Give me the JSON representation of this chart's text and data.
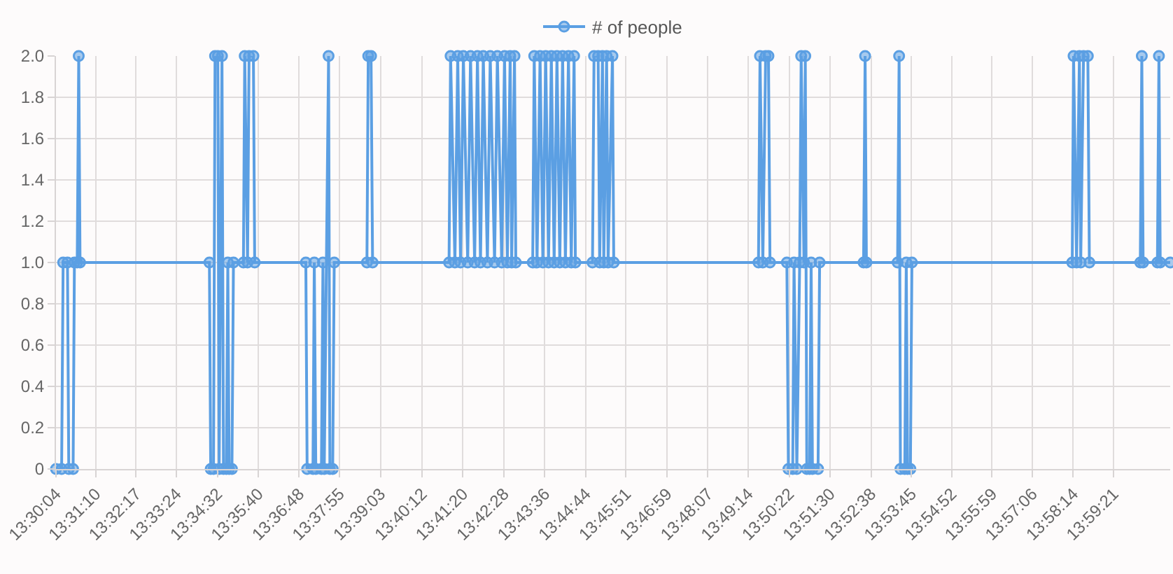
{
  "chart_data": {
    "type": "line",
    "marker": "circle",
    "grid": true,
    "legend": "top",
    "series": [
      {
        "name": "# of people",
        "color": "#5b9fe3",
        "x": [
          13.5011,
          13.5037,
          13.5044,
          13.5064,
          13.507,
          13.509,
          13.5096,
          13.5109,
          13.5116,
          13.5122,
          13.5719,
          13.5725,
          13.5738,
          13.5745,
          13.5758,
          13.5764,
          13.5777,
          13.5784,
          13.5797,
          13.5804,
          13.581,
          13.5823,
          13.583,
          13.5876,
          13.5882,
          13.5895,
          13.5902,
          13.5922,
          13.5928,
          13.6164,
          13.617,
          13.6197,
          13.6203,
          13.621,
          13.6236,
          13.6243,
          13.6249,
          13.6269,
          13.6275,
          13.6288,
          13.6295,
          13.6446,
          13.6452,
          13.6465,
          13.6472,
          13.6825,
          13.6832,
          13.6852,
          13.6865,
          13.6878,
          13.6891,
          13.6911,
          13.6924,
          13.6943,
          13.6956,
          13.697,
          13.6983,
          13.7002,
          13.7015,
          13.7035,
          13.7048,
          13.7068,
          13.7081,
          13.7094,
          13.7107,
          13.7114,
          13.7127,
          13.7133,
          13.7211,
          13.7218,
          13.7231,
          13.7245,
          13.7258,
          13.7271,
          13.7284,
          13.7297,
          13.731,
          13.7323,
          13.7336,
          13.7349,
          13.7362,
          13.7376,
          13.7389,
          13.7402,
          13.7408,
          13.7487,
          13.7494,
          13.7513,
          13.752,
          13.7533,
          13.7539,
          13.7552,
          13.7559,
          13.7579,
          13.7585,
          13.8253,
          13.826,
          13.8273,
          13.8286,
          13.8299,
          13.8306,
          13.8384,
          13.8391,
          13.8411,
          13.8417,
          13.843,
          13.8443,
          13.845,
          13.8463,
          13.8469,
          13.8476,
          13.8489,
          13.8496,
          13.8502,
          13.8528,
          13.8535,
          13.8738,
          13.8745,
          13.8751,
          13.8895,
          13.8902,
          13.8908,
          13.8928,
          13.8935,
          13.8941,
          13.8954,
          13.8961,
          13.9701,
          13.9707,
          13.9721,
          13.9734,
          13.974,
          13.9753,
          13.9773,
          13.978,
          14.0015,
          14.0022,
          14.0028,
          14.0094,
          14.0101,
          14.0107,
          14.0153
        ],
        "values": [
          0,
          0,
          1,
          1,
          0,
          0,
          1,
          1,
          2,
          1,
          1,
          0,
          0,
          2,
          2,
          0,
          2,
          0,
          0,
          1,
          0,
          0,
          1,
          1,
          2,
          1,
          2,
          2,
          1,
          1,
          0,
          0,
          1,
          0,
          0,
          1,
          0,
          2,
          0,
          0,
          1,
          1,
          2,
          2,
          1,
          1,
          2,
          1,
          2,
          1,
          2,
          1,
          2,
          1,
          2,
          1,
          2,
          1,
          2,
          1,
          2,
          1,
          2,
          1,
          2,
          1,
          2,
          1,
          1,
          2,
          1,
          2,
          1,
          2,
          1,
          2,
          1,
          2,
          1,
          2,
          1,
          2,
          1,
          2,
          1,
          1,
          2,
          2,
          1,
          2,
          1,
          2,
          1,
          2,
          1,
          1,
          2,
          1,
          2,
          2,
          1,
          1,
          0,
          0,
          1,
          0,
          1,
          2,
          1,
          2,
          0,
          0,
          1,
          0,
          0,
          1,
          1,
          2,
          1,
          1,
          2,
          0,
          0,
          1,
          0,
          0,
          1,
          1,
          2,
          1,
          2,
          1,
          2,
          2,
          1,
          1,
          2,
          1,
          1,
          2,
          1,
          1
        ]
      }
    ],
    "xlim": [
      13.5011,
      14.0153
    ],
    "xticks": [
      {
        "value": 13.50111,
        "label": "13:30:04"
      },
      {
        "value": 13.51944,
        "label": "13:31:10"
      },
      {
        "value": 13.53806,
        "label": "13:32:17"
      },
      {
        "value": 13.55667,
        "label": "13:33:24"
      },
      {
        "value": 13.57556,
        "label": "13:34:32"
      },
      {
        "value": 13.59444,
        "label": "13:35:40"
      },
      {
        "value": 13.61333,
        "label": "13:36:48"
      },
      {
        "value": 13.63194,
        "label": "13:37:55"
      },
      {
        "value": 13.65083,
        "label": "13:39:03"
      },
      {
        "value": 13.67,
        "label": "13:40:12"
      },
      {
        "value": 13.68889,
        "label": "13:41:20"
      },
      {
        "value": 13.70778,
        "label": "13:42:28"
      },
      {
        "value": 13.72667,
        "label": "13:43:36"
      },
      {
        "value": 13.74556,
        "label": "13:44:44"
      },
      {
        "value": 13.76417,
        "label": "13:45:51"
      },
      {
        "value": 13.78306,
        "label": "13:46:59"
      },
      {
        "value": 13.80194,
        "label": "13:48:07"
      },
      {
        "value": 13.82056,
        "label": "13:49:14"
      },
      {
        "value": 13.83944,
        "label": "13:50:22"
      },
      {
        "value": 13.85833,
        "label": "13:51:30"
      },
      {
        "value": 13.87722,
        "label": "13:52:38"
      },
      {
        "value": 13.89583,
        "label": "13:53:45"
      },
      {
        "value": 13.91444,
        "label": "13:54:52"
      },
      {
        "value": 13.93306,
        "label": "13:55:59"
      },
      {
        "value": 13.95167,
        "label": "13:57:06"
      },
      {
        "value": 13.97056,
        "label": "13:58:14"
      },
      {
        "value": 13.98917,
        "label": "13:59:21"
      }
    ],
    "ylim": [
      0,
      2
    ],
    "yticks": [
      0,
      0.2,
      0.4,
      0.6,
      0.8,
      {
        "value": 1,
        "label": "1.0"
      },
      1.2,
      1.4,
      1.6,
      1.8,
      {
        "value": 2,
        "label": "2.0"
      }
    ]
  }
}
